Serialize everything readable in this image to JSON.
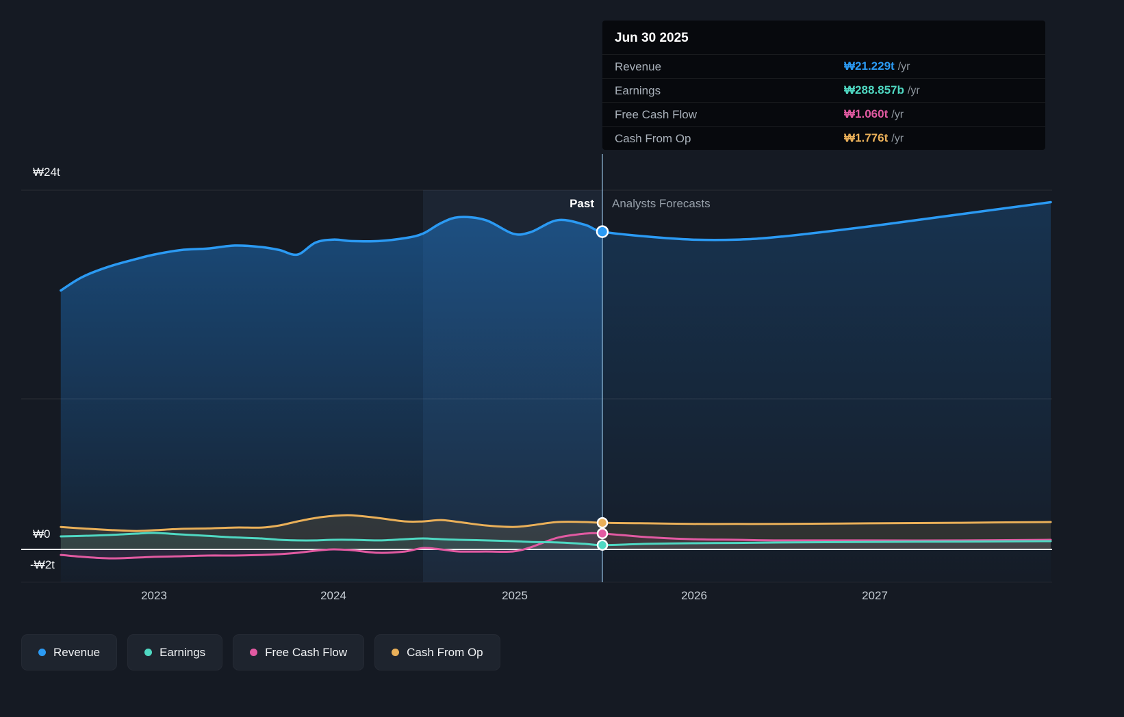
{
  "tooltip": {
    "date": "Jun 30 2025",
    "rows": [
      {
        "label": "Revenue",
        "value": "₩21.229t",
        "suffix": "/yr",
        "color": "#2b9af3"
      },
      {
        "label": "Earnings",
        "value": "₩288.857b",
        "suffix": "/yr",
        "color": "#4fd8c2"
      },
      {
        "label": "Free Cash Flow",
        "value": "₩1.060t",
        "suffix": "/yr",
        "color": "#e25aa2"
      },
      {
        "label": "Cash From Op",
        "value": "₩1.776t",
        "suffix": "/yr",
        "color": "#eab059"
      }
    ]
  },
  "labels": {
    "past": "Past",
    "forecasts": "Analysts Forecasts"
  },
  "y_axis": {
    "labels": [
      {
        "text": "₩24t",
        "value": 24
      },
      {
        "text": "₩0",
        "value": 0
      },
      {
        "text": "-₩2t",
        "value": -2
      }
    ]
  },
  "x_axis": {
    "ticks": [
      {
        "label": "2023",
        "value": 2023
      },
      {
        "label": "2024",
        "value": 2024
      },
      {
        "label": "2025",
        "value": 2025
      },
      {
        "label": "2026",
        "value": 2026
      },
      {
        "label": "2027",
        "value": 2027
      }
    ]
  },
  "legend": [
    {
      "label": "Revenue",
      "color": "#2b9af3"
    },
    {
      "label": "Earnings",
      "color": "#4fd8c2"
    },
    {
      "label": "Free Cash Flow",
      "color": "#e25aa2"
    },
    {
      "label": "Cash From Op",
      "color": "#eab059"
    }
  ],
  "chart_data": {
    "type": "line",
    "unit": "₩ trillions",
    "x_unit": "year",
    "x_ticks": [
      2023,
      2024,
      2025,
      2026,
      2027
    ],
    "y_axis_values": [
      24,
      0,
      -2
    ],
    "y_range": [
      -2.2,
      24
    ],
    "divider_x": 2025.5,
    "divider_date": "Jun 30 2025",
    "past_label": "Past",
    "forecast_label": "Analysts Forecasts",
    "highlight_band": [
      2024.5,
      2025.5
    ],
    "grid": "horizontal",
    "legend_position": "bottom-left",
    "x": [
      2022.48,
      2022.6,
      2022.75,
      2022.9,
      2023.0,
      2023.15,
      2023.3,
      2023.45,
      2023.6,
      2023.7,
      2023.8,
      2023.9,
      2024.0,
      2024.1,
      2024.25,
      2024.4,
      2024.5,
      2024.6,
      2024.7,
      2024.85,
      2025.0,
      2025.1,
      2025.25,
      2025.4,
      2025.5,
      2025.75,
      2026.0,
      2026.25,
      2026.5,
      2027.0,
      2027.5,
      2028.0
    ],
    "series": [
      {
        "name": "Revenue",
        "color": "#2b9af3",
        "value_at_divider": 21.229,
        "values": [
          17.3,
          18.2,
          18.9,
          19.4,
          19.7,
          20.0,
          20.1,
          20.3,
          20.2,
          20.0,
          19.7,
          20.5,
          20.7,
          20.6,
          20.6,
          20.8,
          21.1,
          21.8,
          22.2,
          22.0,
          21.1,
          21.2,
          22.0,
          21.7,
          21.229,
          20.9,
          20.7,
          20.7,
          20.9,
          21.6,
          22.4,
          23.2
        ]
      },
      {
        "name": "Earnings",
        "color": "#4fd8c2",
        "value_at_divider": 0.289,
        "values": [
          0.87,
          0.9,
          0.96,
          1.05,
          1.1,
          1.0,
          0.9,
          0.8,
          0.73,
          0.64,
          0.6,
          0.6,
          0.64,
          0.64,
          0.6,
          0.68,
          0.73,
          0.68,
          0.64,
          0.6,
          0.55,
          0.5,
          0.46,
          0.37,
          0.289,
          0.37,
          0.41,
          0.43,
          0.46,
          0.5,
          0.52,
          0.55
        ]
      },
      {
        "name": "Free Cash Flow",
        "color": "#e25aa2",
        "value_at_divider": 1.06,
        "values": [
          -0.37,
          -0.5,
          -0.6,
          -0.55,
          -0.5,
          -0.46,
          -0.41,
          -0.41,
          -0.37,
          -0.32,
          -0.23,
          -0.09,
          0.0,
          -0.05,
          -0.23,
          -0.14,
          0.09,
          0.0,
          -0.14,
          -0.14,
          -0.14,
          0.14,
          0.78,
          1.05,
          1.06,
          0.82,
          0.68,
          0.64,
          0.6,
          0.6,
          0.6,
          0.64
        ]
      },
      {
        "name": "Cash From Op",
        "color": "#eab059",
        "value_at_divider": 1.776,
        "values": [
          1.5,
          1.4,
          1.3,
          1.23,
          1.28,
          1.37,
          1.4,
          1.46,
          1.46,
          1.6,
          1.87,
          2.1,
          2.24,
          2.28,
          2.1,
          1.87,
          1.87,
          1.96,
          1.83,
          1.6,
          1.5,
          1.6,
          1.83,
          1.83,
          1.776,
          1.74,
          1.7,
          1.7,
          1.7,
          1.74,
          1.78,
          1.83
        ]
      }
    ]
  }
}
